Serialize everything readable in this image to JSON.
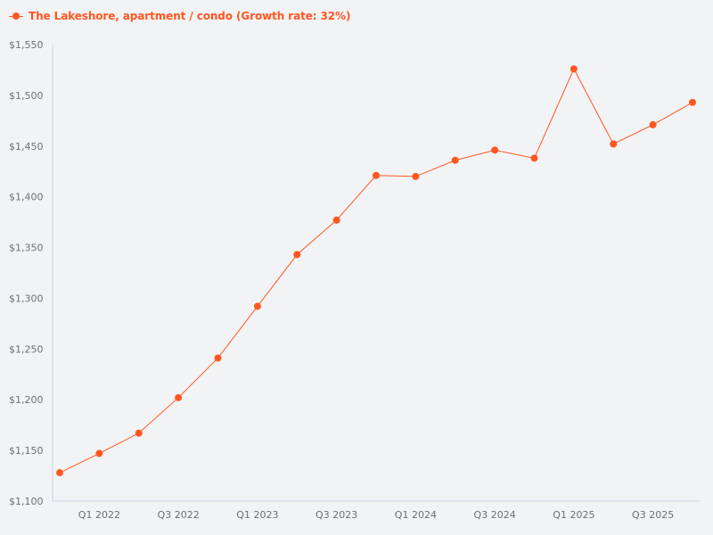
{
  "legend": {
    "label": "The Lakeshore, apartment / condo (Growth rate: 32%)",
    "color": "#ff5722",
    "marker": "line-with-dot-icon"
  },
  "colors": {
    "background": "#f2f3f5",
    "series": "#ff5722",
    "axis": "#c9d3e3",
    "tick_text": "#6b6f75"
  },
  "chart_data": {
    "type": "line",
    "title": "",
    "xlabel": "",
    "ylabel": "",
    "ylim": [
      1100,
      1550
    ],
    "grid": false,
    "legend_position": "top-left",
    "y_ticks": [
      "$1,100",
      "$1,150",
      "$1,200",
      "$1,250",
      "$1,300",
      "$1,350",
      "$1,400",
      "$1,450",
      "$1,500",
      "$1,550"
    ],
    "y_tick_values": [
      1100,
      1150,
      1200,
      1250,
      1300,
      1350,
      1400,
      1450,
      1500,
      1550
    ],
    "x_tick_labels": [
      "Q1 2022",
      "Q3 2022",
      "Q1 2023",
      "Q3 2023",
      "Q1 2024",
      "Q3 2024",
      "Q1 2025",
      "Q3 2025"
    ],
    "x_tick_indices": [
      1,
      3,
      5,
      7,
      9,
      11,
      13,
      15
    ],
    "categories": [
      "Q4 2021",
      "Q1 2022",
      "Q2 2022",
      "Q3 2022",
      "Q4 2022",
      "Q1 2023",
      "Q2 2023",
      "Q3 2023",
      "Q4 2023",
      "Q1 2024",
      "Q2 2024",
      "Q3 2024",
      "Q4 2024",
      "Q1 2025",
      "Q2 2025",
      "Q3 2025",
      "Q4 2025"
    ],
    "series": [
      {
        "name": "The Lakeshore, apartment / condo (Growth rate: 32%)",
        "color": "#ff5722",
        "values": [
          1128,
          1147,
          1167,
          1202,
          1241,
          1292,
          1343,
          1377,
          1421,
          1420,
          1436,
          1446,
          1438,
          1526,
          1452,
          1471,
          1493
        ]
      }
    ]
  }
}
